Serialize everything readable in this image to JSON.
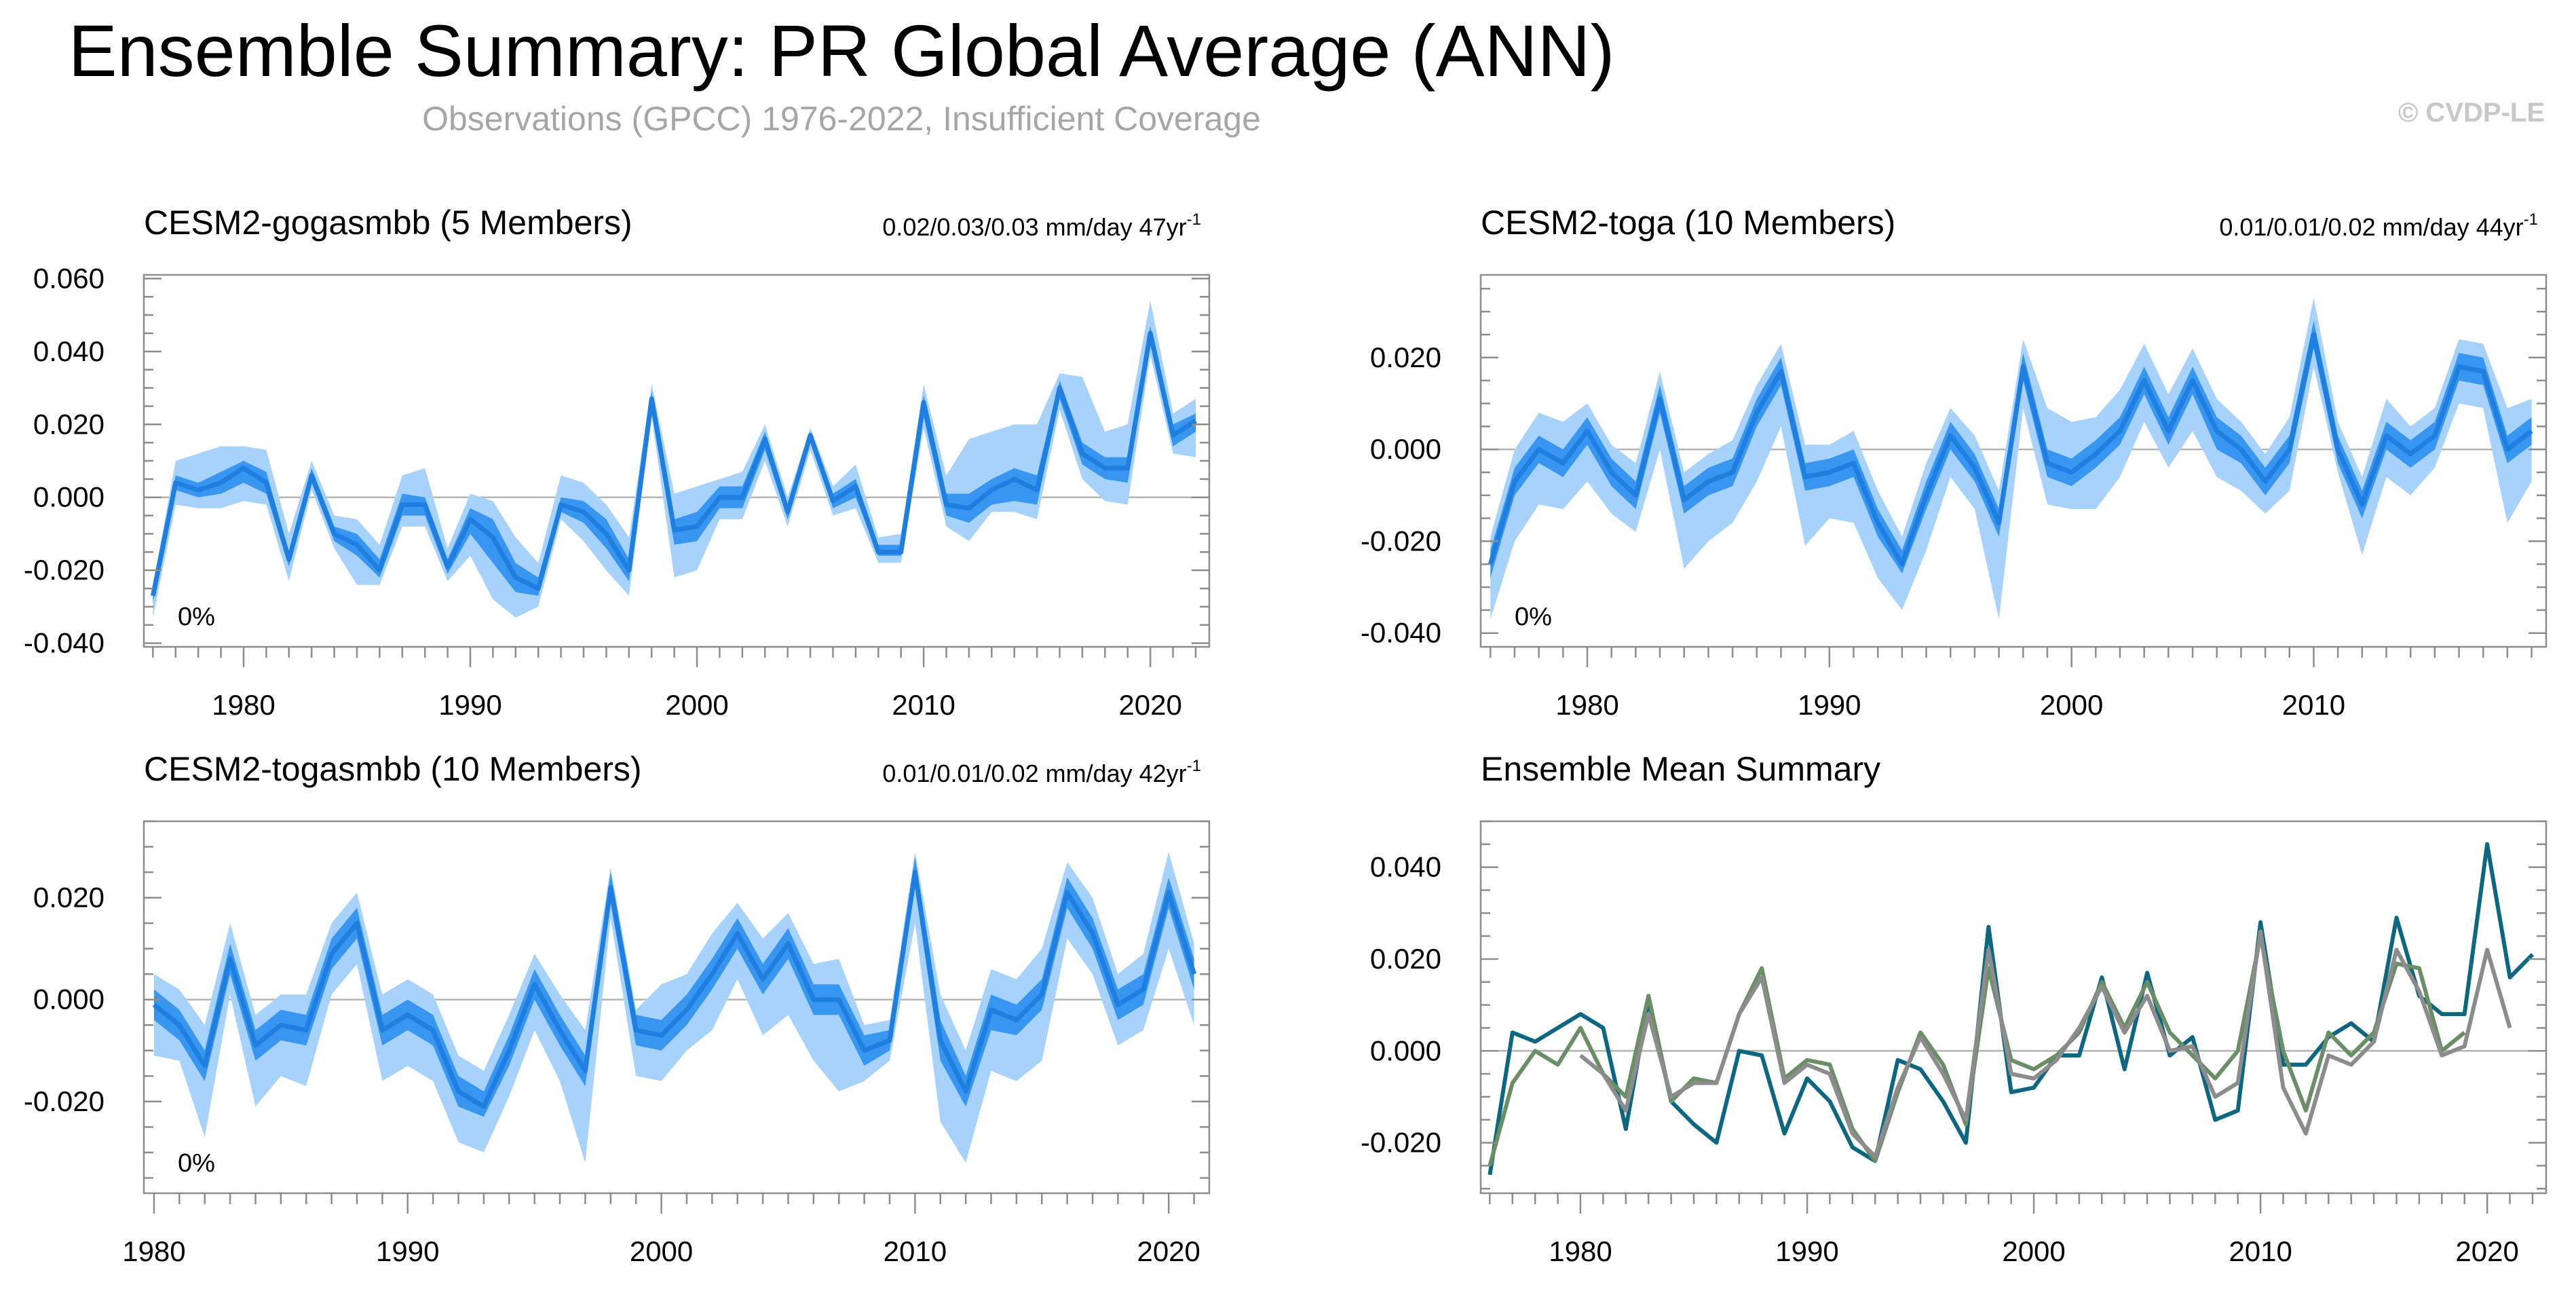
{
  "header": {
    "title": "Ensemble Summary: PR Global Average (ANN)",
    "subtitle": "Observations (GPCC) 1976-2022, Insufficient Coverage",
    "copyright": "© CVDP-LE"
  },
  "colors": {
    "band_outer": "#a6d2fc",
    "band_inner": "#3896f0",
    "mean_line": "#1f7fe0",
    "zero_line": "#b4b4b4",
    "frame": "#8c8c8c",
    "gogasmbb": "#0d6780",
    "toga": "#6a8e65",
    "togasmbb": "#8c8c8c"
  },
  "chart_data": [
    {
      "type": "area",
      "name": "gogasmbb",
      "title": "CESM2-gogasmbb (5 Members)",
      "stats": "0.02/0.03/0.03 mm/day 47yr",
      "stats_sup": "-1",
      "percent_label": "0%",
      "title_color": "#0d6780",
      "xlim": [
        1975.6,
        2022.6
      ],
      "ylim": [
        -0.041,
        0.061
      ],
      "yticks": [
        -0.04,
        -0.02,
        0.0,
        0.02,
        0.04,
        0.06
      ],
      "ytick_labels": [
        "-0.040",
        "-0.020",
        "0.000",
        "0.020",
        "0.040",
        "0.060"
      ],
      "xticks": [
        1980,
        1990,
        2000,
        2010,
        2020
      ],
      "xtick_labels": [
        "1980",
        "1990",
        "2000",
        "2010",
        "2020"
      ],
      "years": [
        1976,
        1977,
        1978,
        1979,
        1980,
        1981,
        1982,
        1983,
        1984,
        1985,
        1986,
        1987,
        1988,
        1989,
        1990,
        1991,
        1992,
        1993,
        1994,
        1995,
        1996,
        1997,
        1998,
        1999,
        2000,
        2001,
        2002,
        2003,
        2004,
        2005,
        2006,
        2007,
        2008,
        2009,
        2010,
        2011,
        2012,
        2013,
        2014,
        2015,
        2016,
        2017,
        2018,
        2019,
        2020,
        2021,
        2022
      ],
      "mean": [
        -0.027,
        0.004,
        0.002,
        0.004,
        0.008,
        0.004,
        -0.017,
        0.006,
        -0.01,
        -0.013,
        -0.02,
        -0.002,
        -0.002,
        -0.019,
        -0.006,
        -0.011,
        -0.022,
        -0.025,
        -0.002,
        -0.004,
        -0.01,
        -0.02,
        0.027,
        -0.009,
        -0.008,
        0.0,
        0.0,
        0.016,
        -0.004,
        0.017,
        -0.001,
        0.003,
        -0.015,
        -0.015,
        0.026,
        -0.002,
        -0.003,
        0.002,
        0.005,
        0.002,
        0.03,
        0.012,
        0.008,
        0.008,
        0.045,
        0.017,
        0.021
      ],
      "p25": [
        -0.029,
        0.002,
        0.0,
        0.001,
        0.004,
        0.001,
        -0.019,
        0.004,
        -0.012,
        -0.016,
        -0.022,
        -0.005,
        -0.005,
        -0.021,
        -0.01,
        -0.018,
        -0.026,
        -0.027,
        -0.004,
        -0.007,
        -0.014,
        -0.023,
        0.024,
        -0.013,
        -0.012,
        -0.003,
        -0.003,
        0.013,
        -0.006,
        0.015,
        -0.003,
        0.0,
        -0.016,
        -0.016,
        0.022,
        -0.005,
        -0.007,
        -0.002,
        -0.001,
        -0.002,
        0.027,
        0.009,
        0.005,
        0.004,
        0.042,
        0.014,
        0.018
      ],
      "p75": [
        -0.025,
        0.006,
        0.004,
        0.007,
        0.01,
        0.007,
        -0.015,
        0.008,
        -0.008,
        -0.01,
        -0.017,
        0.001,
        0.0,
        -0.017,
        -0.003,
        -0.006,
        -0.018,
        -0.022,
        0.0,
        -0.001,
        -0.006,
        -0.017,
        0.029,
        -0.006,
        -0.004,
        0.003,
        0.003,
        0.018,
        -0.002,
        0.018,
        0.001,
        0.005,
        -0.013,
        -0.013,
        0.028,
        0.001,
        0.001,
        0.005,
        0.008,
        0.006,
        0.032,
        0.015,
        0.011,
        0.011,
        0.047,
        0.02,
        0.023
      ],
      "pmin": [
        -0.033,
        -0.002,
        -0.003,
        -0.003,
        -0.001,
        -0.002,
        -0.023,
        0.002,
        -0.014,
        -0.024,
        -0.024,
        -0.008,
        -0.008,
        -0.023,
        -0.016,
        -0.028,
        -0.033,
        -0.03,
        -0.006,
        -0.012,
        -0.02,
        -0.027,
        0.022,
        -0.022,
        -0.02,
        -0.006,
        -0.006,
        0.01,
        -0.008,
        0.013,
        -0.005,
        -0.003,
        -0.018,
        -0.018,
        0.019,
        -0.008,
        -0.012,
        -0.004,
        -0.004,
        -0.006,
        0.024,
        0.005,
        -0.001,
        -0.002,
        0.039,
        0.012,
        0.011
      ],
      "pmax": [
        -0.024,
        0.01,
        0.012,
        0.014,
        0.014,
        0.013,
        -0.01,
        0.01,
        -0.005,
        -0.006,
        -0.013,
        0.006,
        0.008,
        -0.014,
        0.001,
        -0.001,
        -0.011,
        -0.018,
        0.006,
        0.004,
        -0.002,
        -0.011,
        0.031,
        0.001,
        0.003,
        0.005,
        0.007,
        0.02,
        0.0,
        0.019,
        0.003,
        0.009,
        -0.011,
        -0.01,
        0.031,
        0.006,
        0.016,
        0.018,
        0.02,
        0.02,
        0.034,
        0.033,
        0.018,
        0.02,
        0.054,
        0.023,
        0.027
      ]
    },
    {
      "type": "area",
      "name": "toga",
      "title": "CESM2-toga (10 Members)",
      "stats": "0.01/0.01/0.02 mm/day 44yr",
      "stats_sup": "-1",
      "percent_label": "0%",
      "title_color": "#6a8e65",
      "xlim": [
        1975.6,
        2019.6
      ],
      "ylim": [
        -0.043,
        0.038
      ],
      "yticks": [
        -0.04,
        -0.02,
        0.0,
        0.02
      ],
      "ytick_labels": [
        "-0.040",
        "-0.020",
        "0.000",
        "0.020"
      ],
      "xticks": [
        1980,
        1990,
        2000,
        2010
      ],
      "xtick_labels": [
        "1980",
        "1990",
        "2000",
        "2010"
      ],
      "years": [
        1976,
        1977,
        1978,
        1979,
        1980,
        1981,
        1982,
        1983,
        1984,
        1985,
        1986,
        1987,
        1988,
        1989,
        1990,
        1991,
        1992,
        1993,
        1994,
        1995,
        1996,
        1997,
        1998,
        1999,
        2000,
        2001,
        2002,
        2003,
        2004,
        2005,
        2006,
        2007,
        2008,
        2009,
        2010,
        2011,
        2012,
        2013,
        2014,
        2015,
        2016,
        2017,
        2018,
        2019
      ],
      "mean": [
        -0.025,
        -0.007,
        0.0,
        -0.003,
        0.004,
        -0.005,
        -0.01,
        0.011,
        -0.011,
        -0.007,
        -0.005,
        0.008,
        0.017,
        -0.006,
        -0.005,
        -0.003,
        -0.016,
        -0.025,
        -0.01,
        0.003,
        -0.004,
        -0.016,
        0.018,
        -0.003,
        -0.005,
        -0.001,
        0.004,
        0.015,
        0.004,
        0.015,
        0.004,
        0.0,
        -0.007,
        0.0,
        0.025,
        0.0,
        -0.012,
        0.003,
        -0.001,
        0.003,
        0.018,
        0.017,
        0.0,
        0.004
      ],
      "p25": [
        -0.028,
        -0.01,
        -0.003,
        -0.006,
        0.001,
        -0.008,
        -0.013,
        0.008,
        -0.014,
        -0.01,
        -0.008,
        0.005,
        0.014,
        -0.009,
        -0.008,
        -0.006,
        -0.019,
        -0.027,
        -0.013,
        0.0,
        -0.007,
        -0.019,
        0.015,
        -0.006,
        -0.008,
        -0.004,
        0.001,
        0.012,
        0.001,
        0.012,
        0.0,
        -0.003,
        -0.01,
        -0.003,
        0.022,
        -0.003,
        -0.015,
        0.0,
        -0.004,
        0.0,
        0.015,
        0.014,
        -0.003,
        0.001
      ],
      "p75": [
        -0.022,
        -0.004,
        0.003,
        0.0,
        0.007,
        -0.002,
        -0.007,
        0.014,
        -0.008,
        -0.004,
        -0.002,
        0.011,
        0.02,
        -0.003,
        -0.002,
        0.0,
        -0.013,
        -0.022,
        -0.007,
        0.006,
        -0.001,
        -0.013,
        0.021,
        0.0,
        -0.002,
        0.002,
        0.007,
        0.018,
        0.007,
        0.018,
        0.007,
        0.003,
        -0.004,
        0.003,
        0.028,
        0.003,
        -0.009,
        0.006,
        0.002,
        0.006,
        0.021,
        0.02,
        0.003,
        0.007
      ],
      "pmin": [
        -0.037,
        -0.02,
        -0.012,
        -0.013,
        -0.007,
        -0.014,
        -0.018,
        0.0,
        -0.026,
        -0.02,
        -0.016,
        -0.007,
        0.005,
        -0.021,
        -0.015,
        -0.016,
        -0.028,
        -0.035,
        -0.022,
        -0.006,
        -0.013,
        -0.037,
        0.009,
        -0.012,
        -0.013,
        -0.013,
        -0.006,
        0.006,
        -0.004,
        0.004,
        -0.006,
        -0.009,
        -0.014,
        -0.009,
        0.018,
        -0.005,
        -0.023,
        -0.006,
        -0.01,
        -0.004,
        0.01,
        0.009,
        -0.016,
        -0.007
      ],
      "pmax": [
        -0.019,
        0.0,
        0.008,
        0.006,
        0.01,
        0.001,
        -0.003,
        0.017,
        -0.005,
        -0.001,
        0.002,
        0.014,
        0.023,
        0.001,
        0.001,
        0.004,
        -0.009,
        -0.019,
        -0.003,
        0.009,
        0.003,
        -0.009,
        0.024,
        0.009,
        0.006,
        0.007,
        0.013,
        0.023,
        0.012,
        0.022,
        0.011,
        0.006,
        -0.001,
        0.007,
        0.033,
        0.006,
        -0.006,
        0.011,
        0.005,
        0.009,
        0.024,
        0.023,
        0.009,
        0.011
      ]
    },
    {
      "type": "area",
      "name": "togasmbb",
      "title": "CESM2-togasmbb (10 Members)",
      "stats": "0.01/0.01/0.02 mm/day 42yr",
      "stats_sup": "-1",
      "percent_label": "0%",
      "title_color": "#8c8c8c",
      "xlim": [
        1979.6,
        2021.6
      ],
      "ylim": [
        -0.038,
        0.035
      ],
      "yticks": [
        -0.02,
        0.0,
        0.02
      ],
      "ytick_labels": [
        "-0.020",
        "0.000",
        "0.020"
      ],
      "xticks": [
        1980,
        1990,
        2000,
        2010,
        2020
      ],
      "xtick_labels": [
        "1980",
        "1990",
        "2000",
        "2010",
        "2020"
      ],
      "years": [
        1980,
        1981,
        1982,
        1983,
        1984,
        1985,
        1986,
        1987,
        1988,
        1989,
        1990,
        1991,
        1992,
        1993,
        1994,
        1995,
        1996,
        1997,
        1998,
        1999,
        2000,
        2001,
        2002,
        2003,
        2004,
        2005,
        2006,
        2007,
        2008,
        2009,
        2010,
        2011,
        2012,
        2013,
        2014,
        2015,
        2016,
        2017,
        2018,
        2019,
        2020,
        2021
      ],
      "mean": [
        -0.001,
        -0.005,
        -0.013,
        0.008,
        -0.009,
        -0.005,
        -0.006,
        0.009,
        0.015,
        -0.006,
        -0.003,
        -0.006,
        -0.018,
        -0.021,
        -0.01,
        0.003,
        -0.006,
        -0.014,
        0.022,
        -0.006,
        -0.007,
        -0.002,
        0.005,
        0.013,
        0.004,
        0.011,
        0.0,
        0.0,
        -0.01,
        -0.008,
        0.025,
        -0.008,
        -0.018,
        -0.002,
        -0.004,
        0.001,
        0.021,
        0.013,
        -0.001,
        0.002,
        0.021,
        0.005
      ],
      "p25": [
        -0.004,
        -0.008,
        -0.016,
        0.005,
        -0.012,
        -0.008,
        -0.009,
        0.006,
        0.012,
        -0.009,
        -0.006,
        -0.009,
        -0.021,
        -0.023,
        -0.013,
        0.0,
        -0.009,
        -0.017,
        0.019,
        -0.009,
        -0.01,
        -0.005,
        0.002,
        0.01,
        0.001,
        0.008,
        -0.003,
        -0.003,
        -0.013,
        -0.01,
        0.022,
        -0.012,
        -0.021,
        -0.006,
        -0.007,
        -0.002,
        0.018,
        0.01,
        -0.004,
        -0.001,
        0.018,
        0.002
      ],
      "p75": [
        0.002,
        -0.002,
        -0.01,
        0.011,
        -0.006,
        -0.002,
        -0.003,
        0.012,
        0.018,
        -0.003,
        0.0,
        -0.003,
        -0.015,
        -0.018,
        -0.007,
        0.006,
        -0.003,
        -0.011,
        0.025,
        -0.003,
        -0.004,
        0.001,
        0.008,
        0.016,
        0.007,
        0.014,
        0.003,
        0.003,
        -0.007,
        -0.006,
        0.028,
        -0.004,
        -0.015,
        0.001,
        -0.001,
        0.004,
        0.024,
        0.016,
        0.002,
        0.005,
        0.024,
        0.008
      ],
      "pmin": [
        -0.011,
        -0.012,
        -0.027,
        0.001,
        -0.021,
        -0.015,
        -0.017,
        0.001,
        0.007,
        -0.016,
        -0.013,
        -0.016,
        -0.028,
        -0.03,
        -0.019,
        -0.006,
        -0.016,
        -0.032,
        0.016,
        -0.015,
        -0.016,
        -0.01,
        -0.006,
        0.004,
        -0.007,
        -0.003,
        -0.012,
        -0.018,
        -0.016,
        -0.012,
        0.015,
        -0.024,
        -0.032,
        -0.014,
        -0.016,
        -0.012,
        0.012,
        0.005,
        -0.009,
        -0.006,
        0.01,
        -0.005
      ],
      "pmax": [
        0.005,
        0.002,
        -0.005,
        0.015,
        -0.003,
        0.001,
        0.001,
        0.015,
        0.021,
        0.001,
        0.004,
        0.001,
        -0.011,
        -0.014,
        -0.003,
        0.009,
        0.001,
        -0.006,
        0.026,
        -0.002,
        0.003,
        0.005,
        0.013,
        0.019,
        0.012,
        0.017,
        0.007,
        0.008,
        -0.005,
        -0.004,
        0.029,
        0.001,
        -0.01,
        0.006,
        0.004,
        0.01,
        0.027,
        0.02,
        0.005,
        0.009,
        0.029,
        0.011
      ]
    },
    {
      "type": "line",
      "name": "ensemble-mean-summary",
      "title": "Ensemble Mean Summary",
      "title_color": "#000000",
      "xlim": [
        1975.6,
        2022.6
      ],
      "ylim": [
        -0.031,
        0.05
      ],
      "yticks": [
        -0.02,
        0.0,
        0.02,
        0.04
      ],
      "ytick_labels": [
        "-0.020",
        "0.000",
        "0.020",
        "0.040"
      ],
      "xticks": [
        1980,
        1990,
        2000,
        2010,
        2020
      ],
      "xtick_labels": [
        "1980",
        "1990",
        "2000",
        "2010",
        "2020"
      ],
      "series": [
        {
          "name": "CESM2-gogasmbb",
          "color": "#0d6780",
          "start": 1976,
          "values": [
            -0.027,
            0.004,
            0.002,
            0.005,
            0.008,
            0.005,
            -0.017,
            0.011,
            -0.011,
            -0.016,
            -0.02,
            0.0,
            -0.001,
            -0.018,
            -0.006,
            -0.011,
            -0.021,
            -0.024,
            -0.002,
            -0.004,
            -0.011,
            -0.02,
            0.027,
            -0.009,
            -0.008,
            -0.001,
            -0.001,
            0.016,
            -0.004,
            0.017,
            -0.001,
            0.003,
            -0.015,
            -0.013,
            0.028,
            -0.003,
            -0.003,
            0.003,
            0.006,
            0.002,
            0.029,
            0.012,
            0.008,
            0.008,
            0.045,
            0.016,
            0.021
          ]
        },
        {
          "name": "CESM2-toga",
          "color": "#6a8e65",
          "start": 1976,
          "values": [
            -0.025,
            -0.007,
            0.0,
            -0.003,
            0.005,
            -0.005,
            -0.01,
            0.012,
            -0.011,
            -0.006,
            -0.007,
            0.008,
            0.018,
            -0.006,
            -0.002,
            -0.003,
            -0.017,
            -0.024,
            -0.009,
            0.004,
            -0.003,
            -0.016,
            0.018,
            -0.002,
            -0.004,
            -0.001,
            0.004,
            0.015,
            0.005,
            0.015,
            0.004,
            -0.001,
            -0.006,
            0.0,
            0.025,
            0.0,
            -0.013,
            0.004,
            -0.001,
            0.004,
            0.019,
            0.018,
            0.0,
            0.004
          ]
        },
        {
          "name": "CESM2-togasmbb",
          "color": "#8c8c8c",
          "start": 1980,
          "values": [
            -0.001,
            -0.005,
            -0.013,
            0.008,
            -0.01,
            -0.007,
            -0.007,
            0.008,
            0.016,
            -0.007,
            -0.003,
            -0.005,
            -0.018,
            -0.023,
            -0.008,
            0.003,
            -0.005,
            -0.015,
            0.022,
            -0.005,
            -0.006,
            -0.002,
            0.005,
            0.014,
            0.004,
            0.012,
            0.0,
            0.001,
            -0.01,
            -0.007,
            0.026,
            -0.008,
            -0.018,
            -0.001,
            -0.003,
            0.002,
            0.022,
            0.013,
            -0.001,
            0.001,
            0.022,
            0.005
          ]
        }
      ]
    }
  ]
}
